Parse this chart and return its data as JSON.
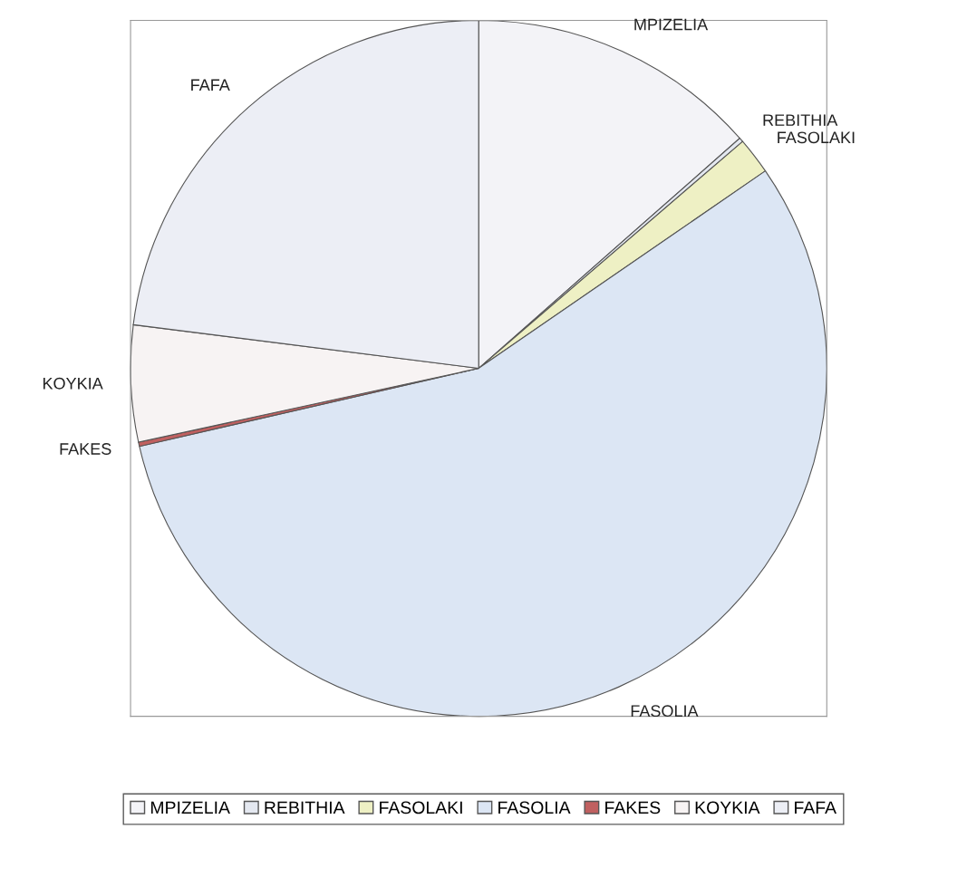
{
  "chart_data": {
    "type": "pie",
    "categories": [
      "MPIZELIA",
      "REBITHIA",
      "FASOLAKI",
      "FASOLIA",
      "FAKES",
      "KOYKIA",
      "FAFA"
    ],
    "values": [
      13.5,
      0.2,
      1.7,
      56.0,
      0.2,
      5.4,
      23.0
    ],
    "colors": [
      "#f3f3f7",
      "#e4e8f0",
      "#eef0c4",
      "#dce6f4",
      "#c06060",
      "#f7f3f3",
      "#eceef5"
    ],
    "legend": "bottom"
  }
}
